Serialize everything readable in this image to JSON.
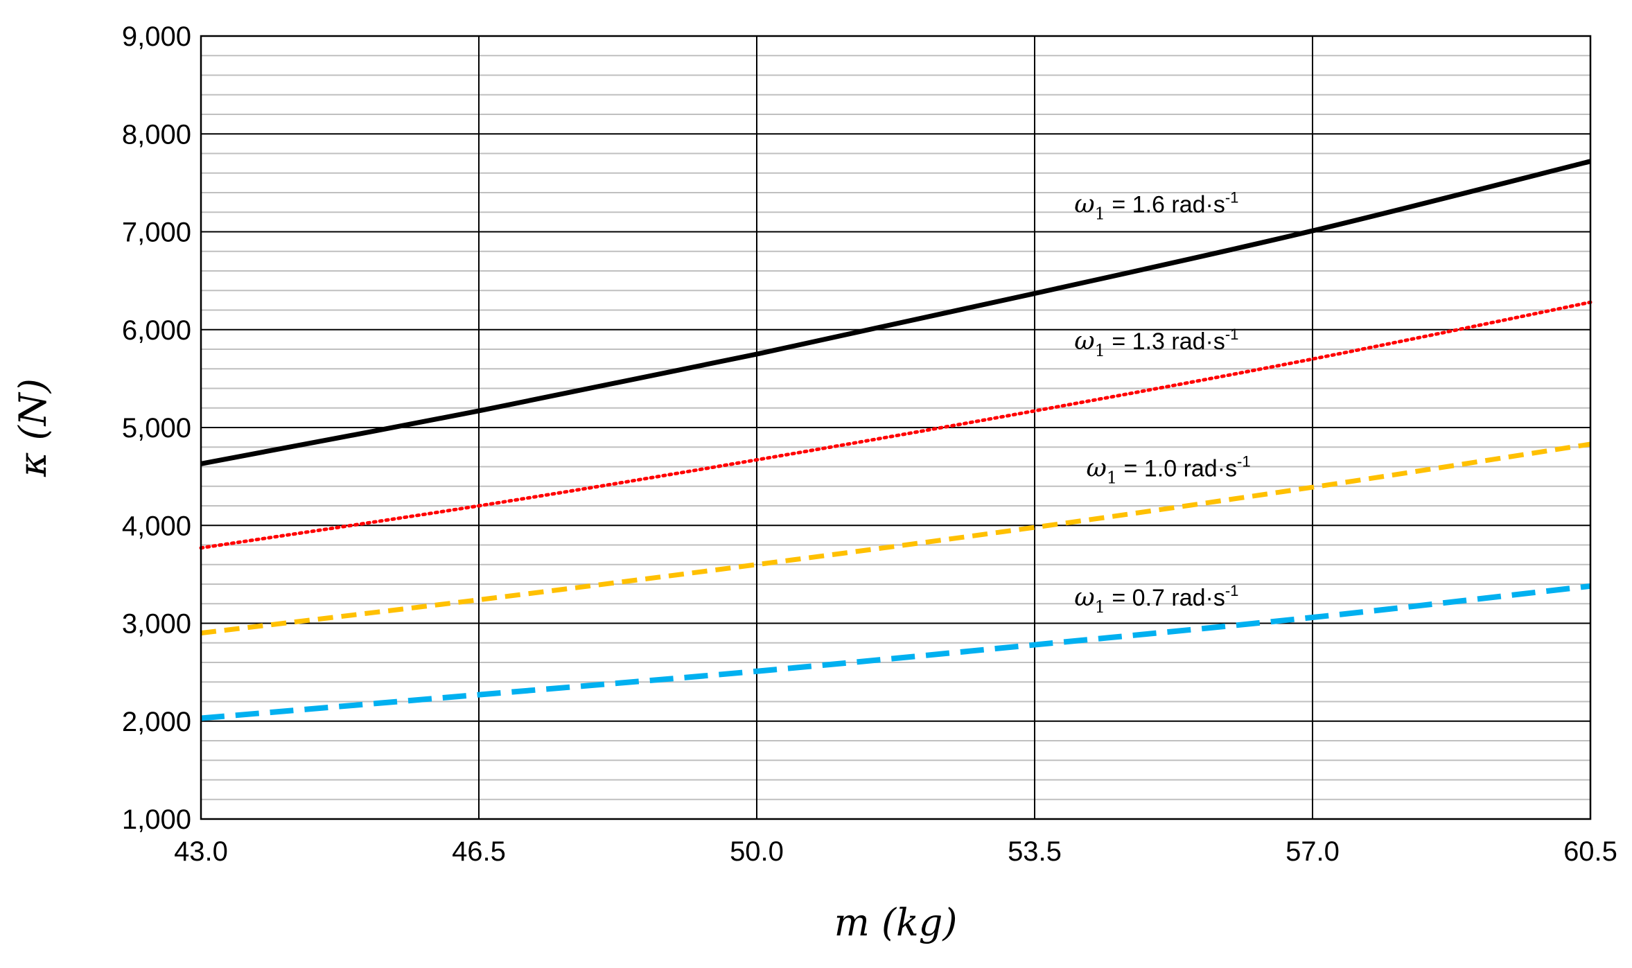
{
  "chart_data": {
    "type": "line",
    "title": "",
    "xlabel": "m (kg)",
    "ylabel": "κ (N)",
    "xlim": [
      43.0,
      60.5
    ],
    "ylim": [
      1000,
      9000
    ],
    "x_ticks": [
      43.0,
      46.5,
      50.0,
      53.5,
      57.0,
      60.5
    ],
    "x_tick_labels": [
      "43.0",
      "46.5",
      "50.0",
      "53.5",
      "57.0",
      "60.5"
    ],
    "y_ticks": [
      1000,
      2000,
      3000,
      4000,
      5000,
      6000,
      7000,
      8000,
      9000
    ],
    "y_tick_labels": [
      "1,000",
      "2,000",
      "3,000",
      "4,000",
      "5,000",
      "6,000",
      "7,000",
      "8,000",
      "9,000"
    ],
    "grid": {
      "major": true,
      "minor_y": true,
      "minor_y_step": 200
    },
    "x": [
      43.0,
      46.5,
      50.0,
      53.5,
      57.0,
      60.5
    ],
    "series": [
      {
        "name": "ω1 = 1.6 rad·s-1",
        "label": {
          "symbol": "ω",
          "subscript": "1",
          "text": " = 1.6 rad·s",
          "superscript": "-1"
        },
        "color": "#000000",
        "style": "solid",
        "values": [
          4630,
          5170,
          5750,
          6370,
          7010,
          7720
        ],
        "label_anchor": [
          54.0,
          7200
        ]
      },
      {
        "name": "ω1 = 1.3 rad·s-1",
        "label": {
          "symbol": "ω",
          "subscript": "1",
          "text": " = 1.3 rad·s",
          "superscript": "-1"
        },
        "color": "#ff0000",
        "style": "dotted",
        "values": [
          3770,
          4200,
          4670,
          5170,
          5700,
          6280
        ],
        "label_anchor": [
          54.0,
          5800
        ]
      },
      {
        "name": "ω1 = 1.0 rad·s-1",
        "label": {
          "symbol": "ω",
          "subscript": "1",
          "text": " = 1.0 rad·s",
          "superscript": "-1"
        },
        "color": "#ffc000",
        "style": "dashed",
        "values": [
          2900,
          3240,
          3600,
          3980,
          4390,
          4830
        ],
        "label_anchor": [
          54.15,
          4500
        ]
      },
      {
        "name": "ω1 = 0.7 rad·s-1",
        "label": {
          "symbol": "ω",
          "subscript": "1",
          "text": " = 0.7 rad·s",
          "superscript": "-1"
        },
        "color": "#00b0f0",
        "style": "longdash",
        "values": [
          2030,
          2270,
          2510,
          2780,
          3060,
          3380
        ],
        "label_anchor": [
          54.0,
          3180
        ]
      }
    ]
  }
}
